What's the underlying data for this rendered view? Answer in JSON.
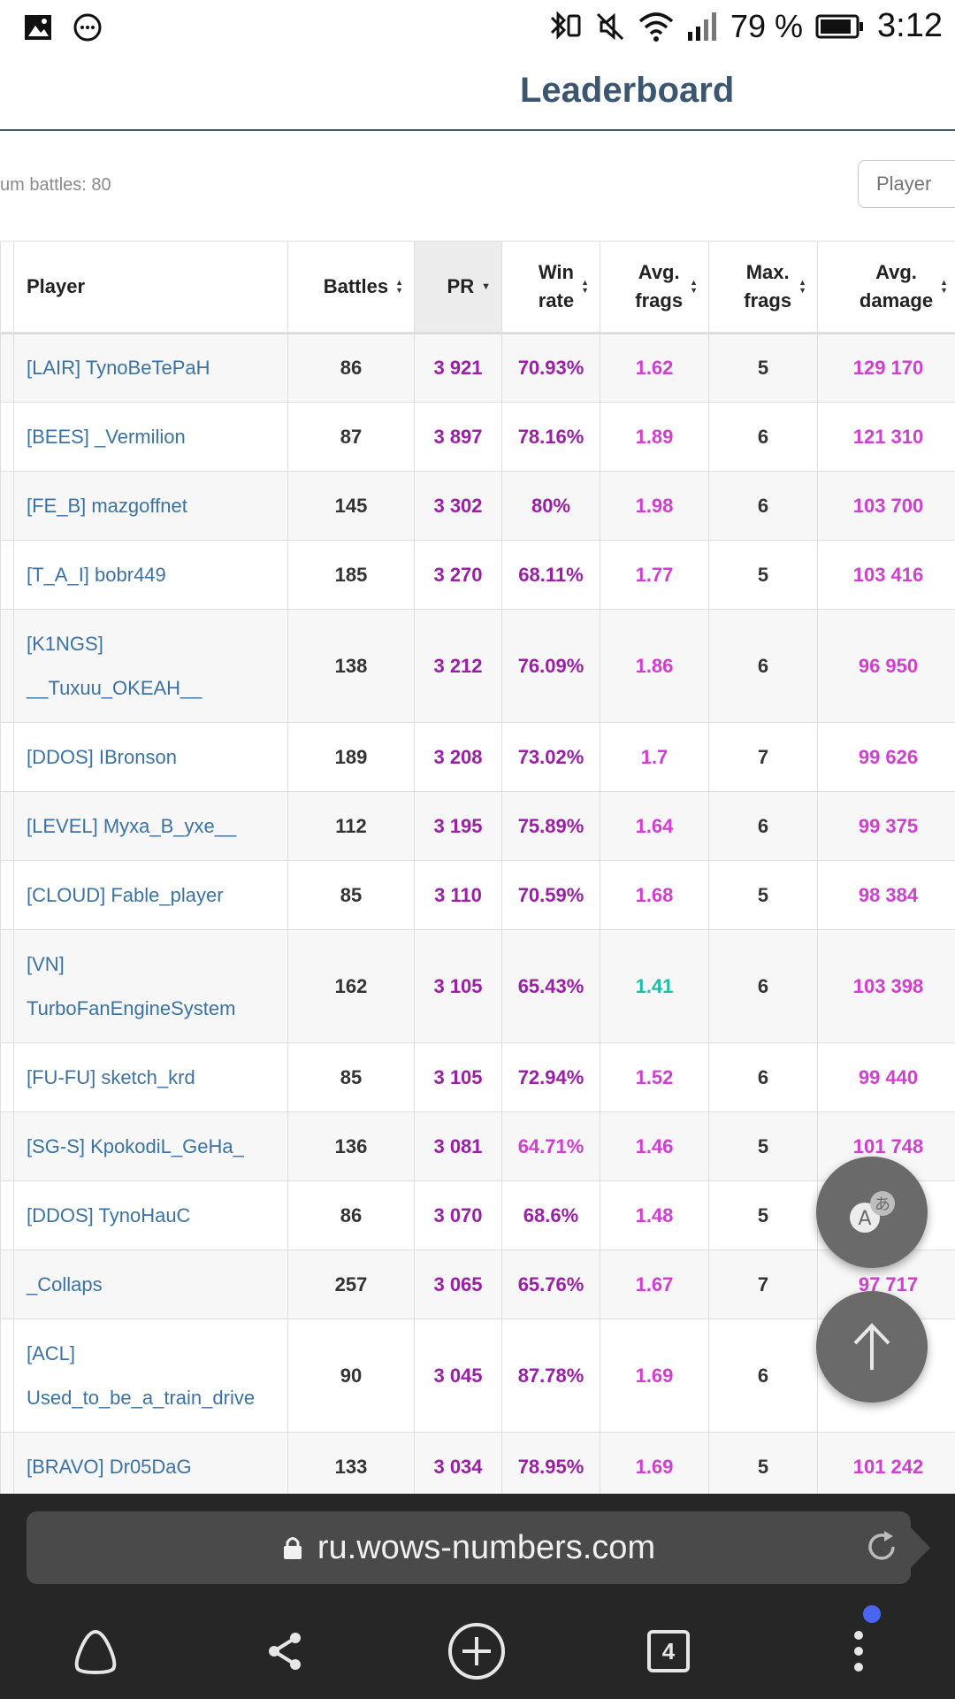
{
  "status_bar": {
    "battery_percent": "79 %",
    "time": "3:12"
  },
  "page": {
    "title": "Leaderboard",
    "min_battles_label": "um battles: 80",
    "player_filter_placeholder": "Player"
  },
  "table": {
    "columns": {
      "player": "Player",
      "battles": "Battles",
      "pr": "PR",
      "win_rate": [
        "Win",
        "rate"
      ],
      "avg_frags": [
        "Avg.",
        "frags"
      ],
      "max_frags": [
        "Max.",
        "frags"
      ],
      "avg_damage": [
        "Avg.",
        "damage"
      ]
    },
    "rows": [
      {
        "player_line1": "[LAIR] TynoBeTePaH",
        "player_line2": "",
        "battles": "86",
        "pr": "3 921",
        "win_rate": "70.93%",
        "avg_frags": "1.62",
        "max_frags": "5",
        "avg_damage": "129 170"
      },
      {
        "player_line1": "[BEES] _Vermilion",
        "player_line2": "",
        "battles": "87",
        "pr": "3 897",
        "win_rate": "78.16%",
        "avg_frags": "1.89",
        "max_frags": "6",
        "avg_damage": "121 310"
      },
      {
        "player_line1": "[FE_B] mazgoffnet",
        "player_line2": "",
        "battles": "145",
        "pr": "3 302",
        "win_rate": "80%",
        "avg_frags": "1.98",
        "max_frags": "6",
        "avg_damage": "103 700"
      },
      {
        "player_line1": "[T_A_I] bobr449",
        "player_line2": "",
        "battles": "185",
        "pr": "3 270",
        "win_rate": "68.11%",
        "avg_frags": "1.77",
        "max_frags": "5",
        "avg_damage": "103 416"
      },
      {
        "player_line1": "[K1NGS]",
        "player_line2": "__Tuxuu_OKEAH__",
        "battles": "138",
        "pr": "3 212",
        "win_rate": "76.09%",
        "avg_frags": "1.86",
        "max_frags": "6",
        "avg_damage": "96 950"
      },
      {
        "player_line1": "[DDOS] IBronson",
        "player_line2": "",
        "battles": "189",
        "pr": "3 208",
        "win_rate": "73.02%",
        "avg_frags": "1.7",
        "max_frags": "7",
        "avg_damage": "99 626"
      },
      {
        "player_line1": "[LEVEL] Myxa_B_yxe__",
        "player_line2": "",
        "battles": "112",
        "pr": "3 195",
        "win_rate": "75.89%",
        "avg_frags": "1.64",
        "max_frags": "6",
        "avg_damage": "99 375"
      },
      {
        "player_line1": "[CLOUD] Fable_player",
        "player_line2": "",
        "battles": "85",
        "pr": "3 110",
        "win_rate": "70.59%",
        "avg_frags": "1.68",
        "max_frags": "5",
        "avg_damage": "98 384"
      },
      {
        "player_line1": "[VN]",
        "player_line2": "TurboFanEngineSystem",
        "battles": "162",
        "pr": "3 105",
        "win_rate": "65.43%",
        "avg_frags": "1.41",
        "max_frags": "6",
        "avg_damage": "103 398"
      },
      {
        "player_line1": "[FU-FU] sketch_krd",
        "player_line2": "",
        "battles": "85",
        "pr": "3 105",
        "win_rate": "72.94%",
        "avg_frags": "1.52",
        "max_frags": "6",
        "avg_damage": "99 440"
      },
      {
        "player_line1": "[SG-S] KpokodiL_GeHa_",
        "player_line2": "",
        "battles": "136",
        "pr": "3 081",
        "win_rate": "64.71%",
        "avg_frags": "1.46",
        "max_frags": "5",
        "avg_damage": "101 748"
      },
      {
        "player_line1": "[DDOS] TynoHauC",
        "player_line2": "",
        "battles": "86",
        "pr": "3 070",
        "win_rate": "68.6%",
        "avg_frags": "1.48",
        "max_frags": "5",
        "avg_damage": ""
      },
      {
        "player_line1": "_Collaps",
        "player_line2": "",
        "battles": "257",
        "pr": "3 065",
        "win_rate": "65.76%",
        "avg_frags": "1.67",
        "max_frags": "7",
        "avg_damage": "97 717"
      },
      {
        "player_line1": "[ACL]",
        "player_line2": "Used_to_be_a_train_drive",
        "battles": "90",
        "pr": "3 045",
        "win_rate": "87.78%",
        "avg_frags": "1.69",
        "max_frags": "6",
        "avg_damage": ""
      },
      {
        "player_line1": "[BRAVO] Dr05DaG",
        "player_line2": "",
        "battles": "133",
        "pr": "3 034",
        "win_rate": "78.95%",
        "avg_frags": "1.69",
        "max_frags": "5",
        "avg_damage": "101 242"
      }
    ]
  },
  "browser": {
    "url": "ru.wows-numbers.com",
    "tab_count": "4"
  },
  "colors": {
    "header_title": "#3b5670",
    "link": "#3a72a6",
    "pr_purple": "#9b1fa6",
    "pink": "#d03fd0",
    "teal": "#1fbea7",
    "browser_dark": "#262626",
    "notification_dot": "#4a66f0"
  }
}
